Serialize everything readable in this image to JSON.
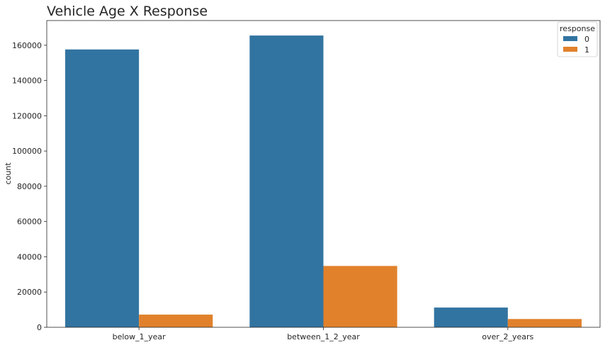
{
  "chart_data": {
    "type": "bar",
    "title": "Vehicle Age X Response",
    "xlabel": "",
    "ylabel": "count",
    "categories": [
      "below_1_year",
      "between_1_2_year",
      "over_2_years"
    ],
    "series": [
      {
        "name": "0",
        "values": [
          157600,
          165500,
          11200
        ],
        "color": "#3274a1"
      },
      {
        "name": "1",
        "values": [
          7200,
          34800,
          4700
        ],
        "color": "#e1812c"
      }
    ],
    "ylim": [
      0,
      174000
    ],
    "yticks": [
      0,
      20000,
      40000,
      60000,
      80000,
      100000,
      120000,
      140000,
      160000
    ],
    "grid": false,
    "legend": {
      "title": "response",
      "placement": "top-right"
    }
  }
}
